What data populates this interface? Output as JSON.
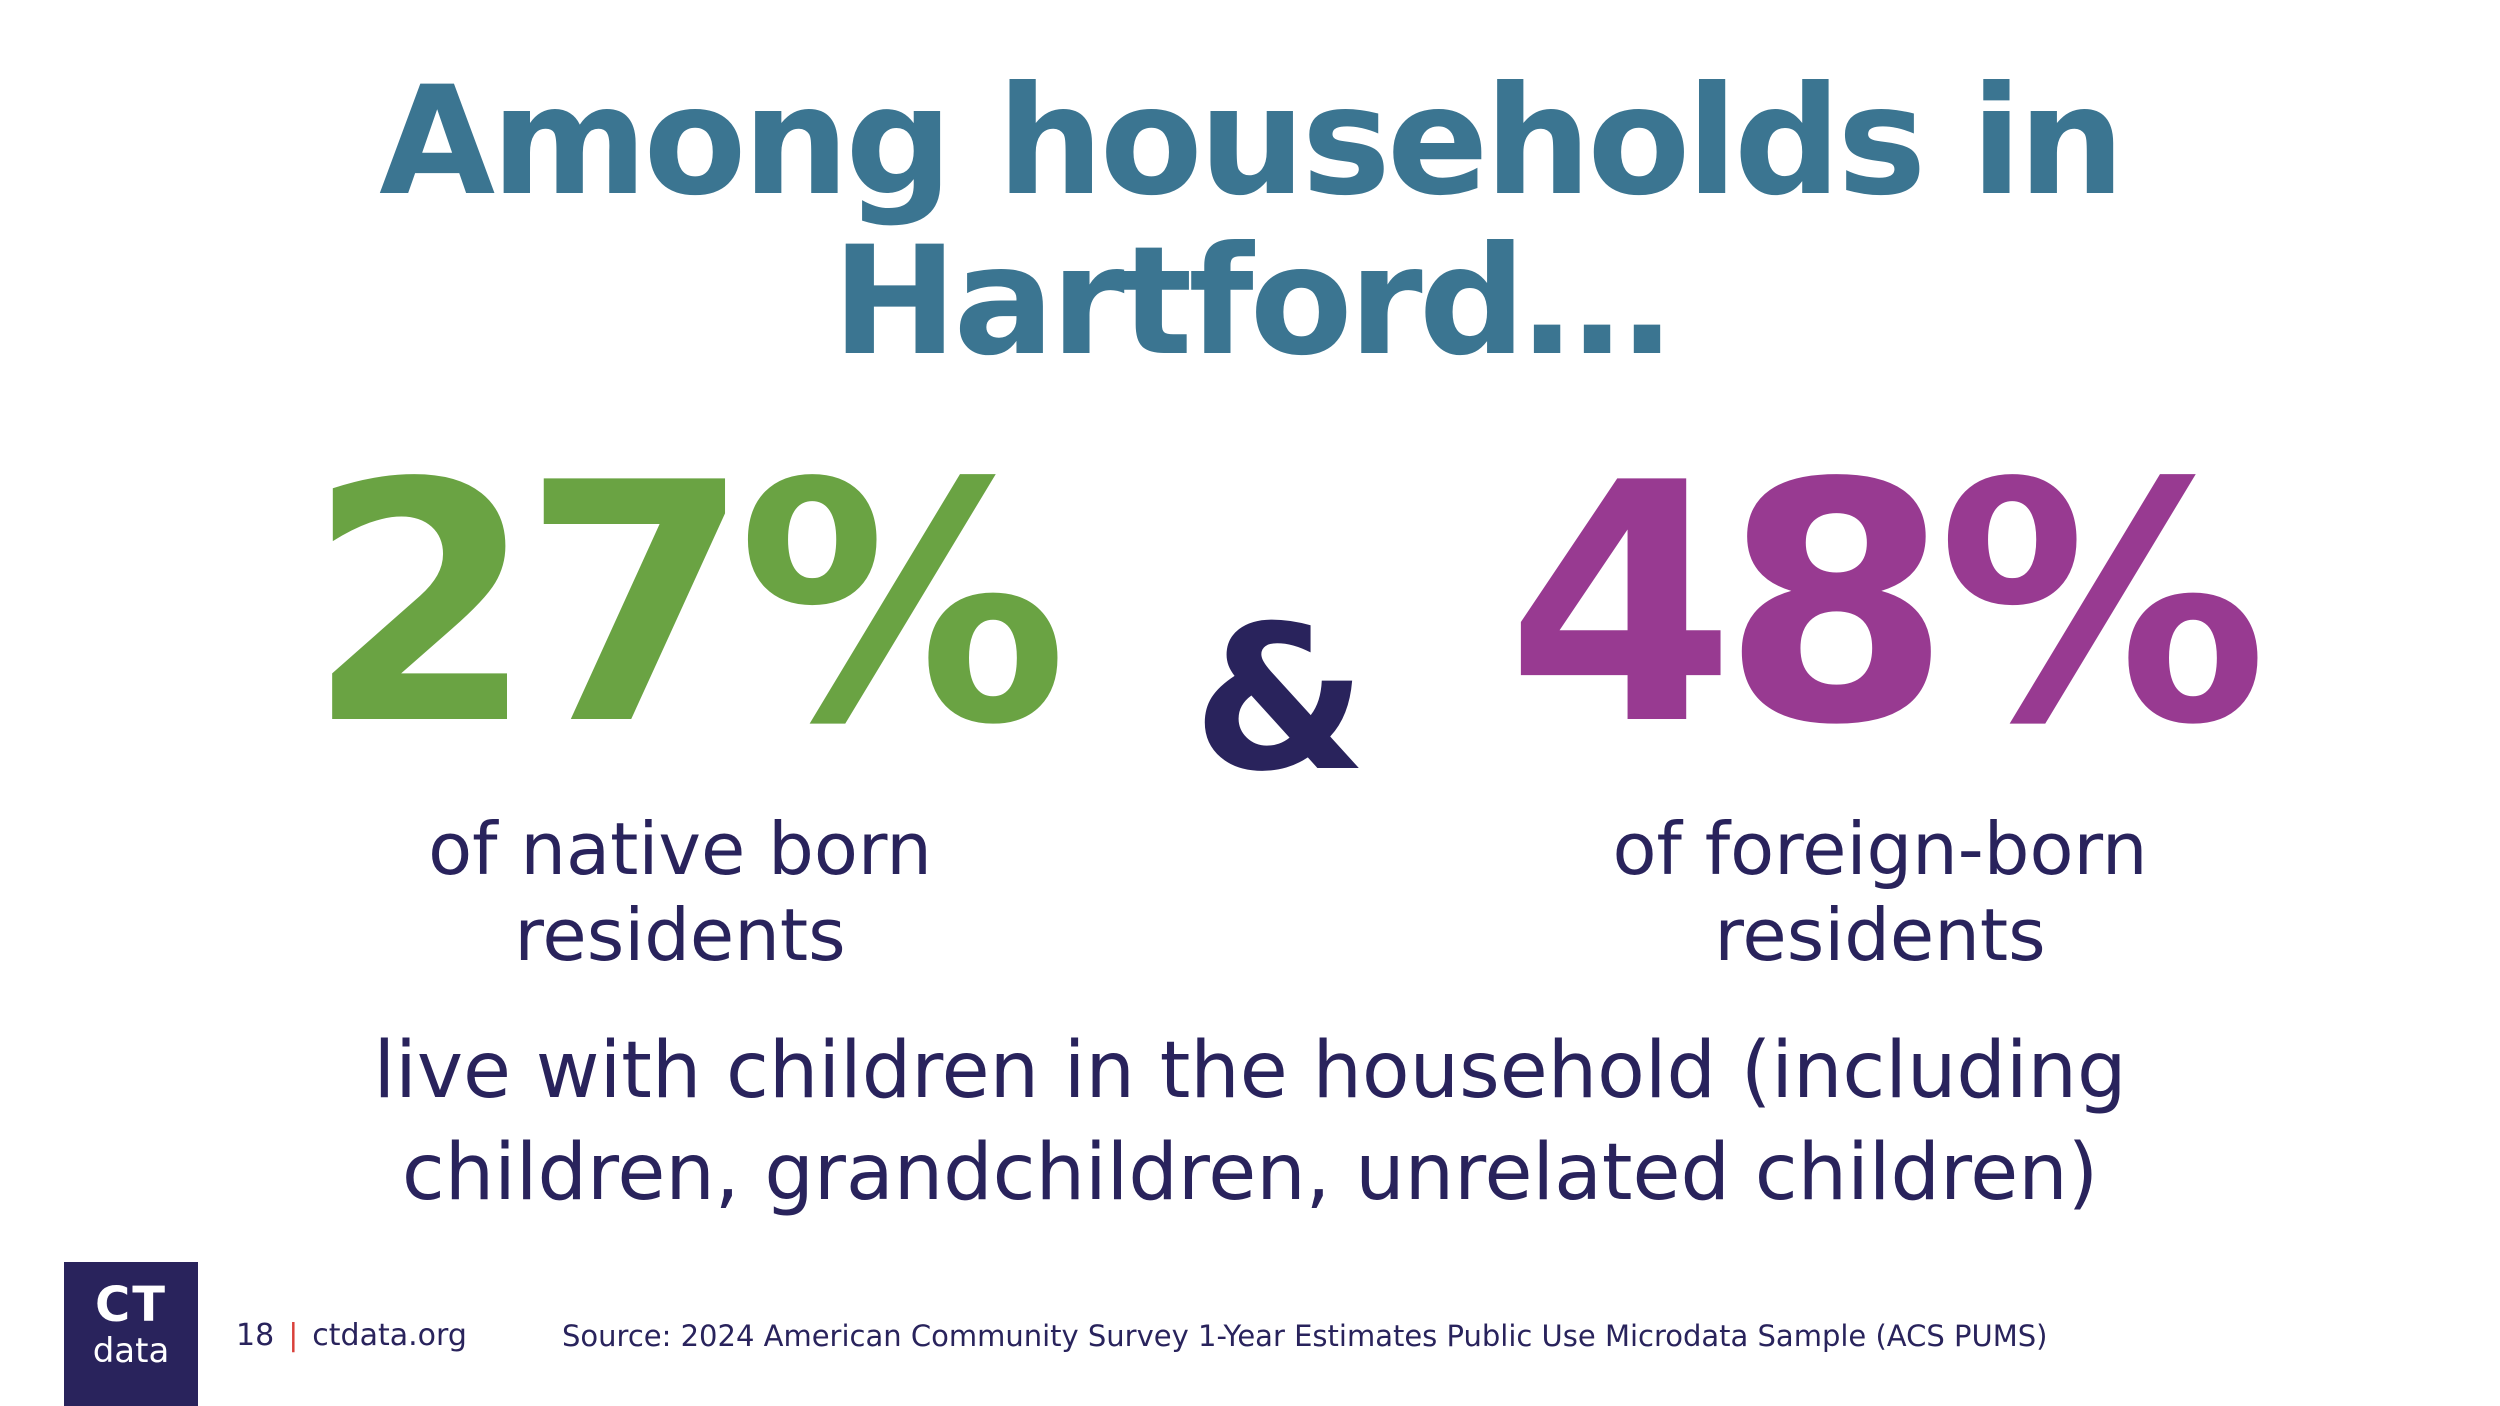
{
  "title": {
    "line1": "Among households in",
    "line2": "Hartford…"
  },
  "stats": {
    "left": {
      "value": "27%",
      "description_line1": "of native born",
      "description_line2": "residents"
    },
    "connector": "&",
    "right": {
      "value": "48%",
      "description_line1": "of foreign-born",
      "description_line2": "residents"
    }
  },
  "conclusion": {
    "line1": "live with children in the household (including",
    "line2": "children, grandchildren, unrelated children)"
  },
  "footer": {
    "logo_top": "CT",
    "logo_bottom": "data",
    "page_number": "18",
    "separator": "|",
    "website": "ctdata.org",
    "source": "Source: 2024 American Community Survey 1-Year Estimates Public Use Microdata Sample (ACS PUMS)"
  },
  "colors": {
    "title": "#3b7591",
    "native_green": "#6aa343",
    "foreign_purple": "#983a91",
    "navy": "#29235c",
    "separator_red": "#d9403a",
    "background": "#ffffff"
  }
}
